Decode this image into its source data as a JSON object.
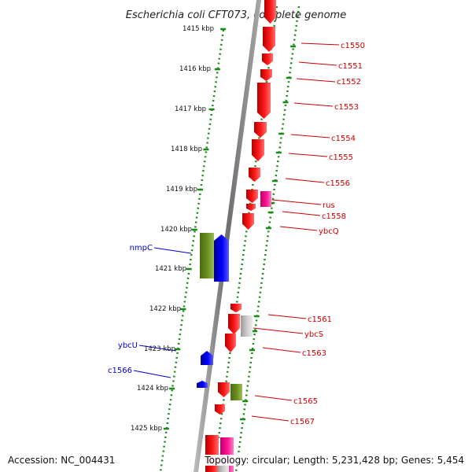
{
  "title": "Escherichia coli CFT073, complete genome",
  "footer": {
    "accession": "Accession: NC_004431",
    "summary": "Topology: circular; Length: 5,231,428 bp; Genes: 5,454"
  },
  "colors": {
    "backbone": "#8a8a8a",
    "ruler": "#1a8a1a",
    "forward_gene": "#ff0000",
    "reverse_gene_blue": "#0000ff",
    "olive_gene": "#6b8e23",
    "magenta_gene": "#ff1493",
    "grey_gene": "#c8c8c8",
    "label_right": "#cc0000",
    "label_left": "#0000cc"
  },
  "ruler_labels": [
    "1415 kbp",
    "1416 kbp",
    "1417 kbp",
    "1418 kbp",
    "1419 kbp",
    "1420 kbp",
    "1421 kbp",
    "1422 kbp",
    "1423 kbp",
    "1424 kbp",
    "1425 kbp"
  ],
  "genes_right": [
    "c1550",
    "c1551",
    "c1552",
    "c1553",
    "c1554",
    "c1555",
    "c1556",
    "rus",
    "c1558",
    "ybcQ",
    "c1561",
    "ybcS",
    "c1563",
    "c1565",
    "c1567"
  ],
  "genes_left": [
    "nmpC",
    "ybcU",
    "c1566"
  ]
}
